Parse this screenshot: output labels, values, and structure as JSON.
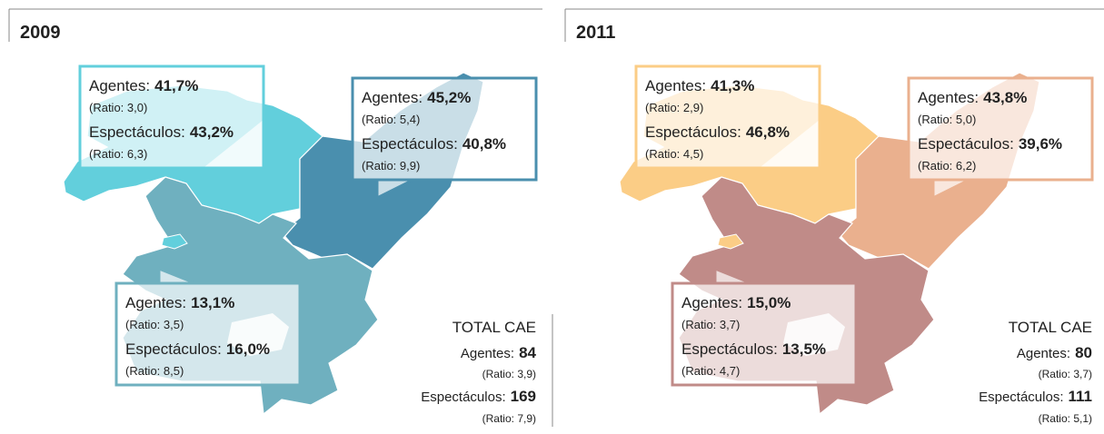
{
  "panels": [
    {
      "year": "2009",
      "callouts": [
        {
          "agentes_label": "Agentes:",
          "agentes": "41,7%",
          "agentes_ratio": "(Ratio: 3,0)",
          "espectaculos_label": "Espectáculos:",
          "espectaculos": "43,2%",
          "espectaculos_ratio": "(Ratio: 6,3)"
        },
        {
          "agentes_label": "Agentes:",
          "agentes": "45,2%",
          "agentes_ratio": "(Ratio: 5,4)",
          "espectaculos_label": "Espectáculos:",
          "espectaculos": "40,8%",
          "espectaculos_ratio": "(Ratio: 9,9)"
        },
        {
          "agentes_label": "Agentes:",
          "agentes": "13,1%",
          "agentes_ratio": "(Ratio: 3,5)",
          "espectaculos_label": "Espectáculos:",
          "espectaculos": "16,0%",
          "espectaculos_ratio": "(Ratio: 8,5)"
        }
      ],
      "total": {
        "title": "TOTAL CAE",
        "agentes_label": "Agentes:",
        "agentes": "84",
        "agentes_ratio": "(Ratio: 3,9)",
        "espectaculos_label": "Espectáculos:",
        "espectaculos": "169",
        "espectaculos_ratio": "(Ratio: 7,9)"
      }
    },
    {
      "year": "2011",
      "callouts": [
        {
          "agentes_label": "Agentes:",
          "agentes": "41,3%",
          "agentes_ratio": "(Ratio: 2,9)",
          "espectaculos_label": "Espectáculos:",
          "espectaculos": "46,8%",
          "espectaculos_ratio": "(Ratio: 4,5)"
        },
        {
          "agentes_label": "Agentes:",
          "agentes": "43,8%",
          "agentes_ratio": "(Ratio: 5,0)",
          "espectaculos_label": "Espectáculos:",
          "espectaculos": "39,6%",
          "espectaculos_ratio": "(Ratio: 6,2)"
        },
        {
          "agentes_label": "Agentes:",
          "agentes": "15,0%",
          "agentes_ratio": "(Ratio: 3,7)",
          "espectaculos_label": "Espectáculos:",
          "espectaculos": "13,5%",
          "espectaculos_ratio": "(Ratio: 4,7)"
        }
      ],
      "total": {
        "title": "TOTAL CAE",
        "agentes_label": "Agentes:",
        "agentes": "80",
        "agentes_ratio": "(Ratio: 3,7)",
        "espectaculos_label": "Espectáculos:",
        "espectaculos": "111",
        "espectaculos_ratio": "(Ratio: 5,1)"
      }
    }
  ]
}
